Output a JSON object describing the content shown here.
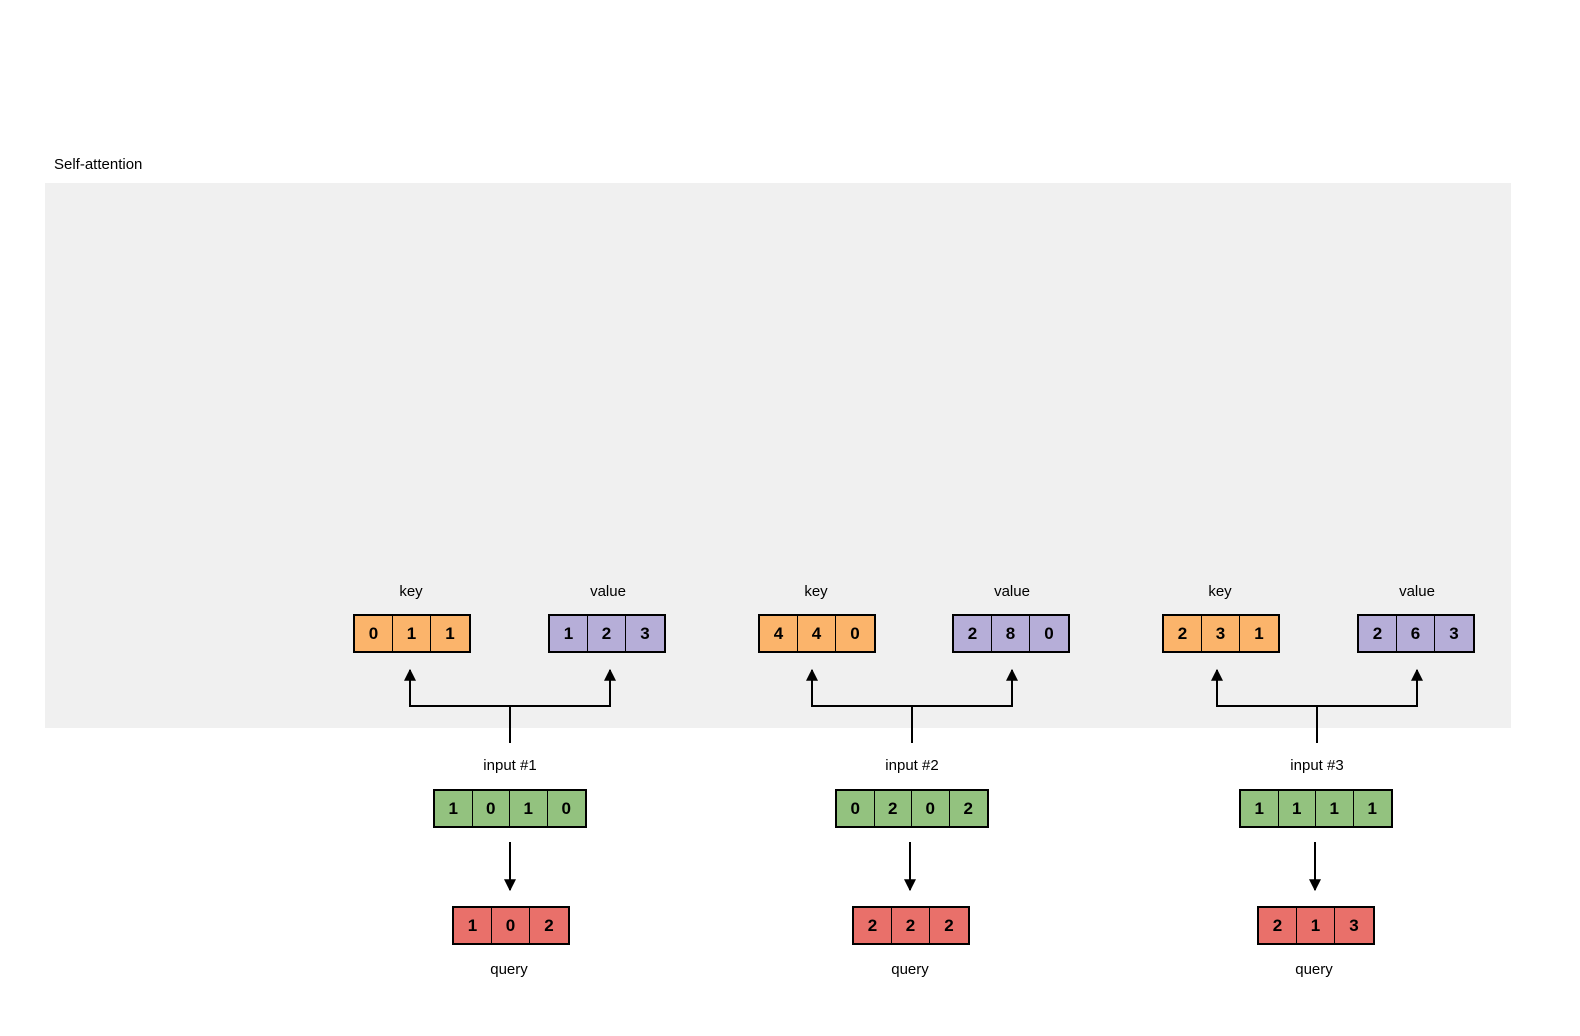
{
  "title": "Self-attention",
  "colors": {
    "panel": "#f0f0f0",
    "key": "#fbb46b",
    "value": "#b6aed8",
    "input": "#93c27f",
    "query": "#e9706a"
  },
  "labels": {
    "key": "key",
    "value": "value",
    "query": "query"
  },
  "groups": [
    {
      "input_label": "input #1",
      "input": [
        "1",
        "0",
        "1",
        "0"
      ],
      "key": [
        "0",
        "1",
        "1"
      ],
      "value": [
        "1",
        "2",
        "3"
      ],
      "query": [
        "1",
        "0",
        "2"
      ]
    },
    {
      "input_label": "input #2",
      "input": [
        "0",
        "2",
        "0",
        "2"
      ],
      "key": [
        "4",
        "4",
        "0"
      ],
      "value": [
        "2",
        "8",
        "0"
      ],
      "query": [
        "2",
        "2",
        "2"
      ]
    },
    {
      "input_label": "input #3",
      "input": [
        "1",
        "1",
        "1",
        "1"
      ],
      "key": [
        "2",
        "3",
        "1"
      ],
      "value": [
        "2",
        "6",
        "3"
      ],
      "query": [
        "2",
        "1",
        "3"
      ]
    }
  ]
}
